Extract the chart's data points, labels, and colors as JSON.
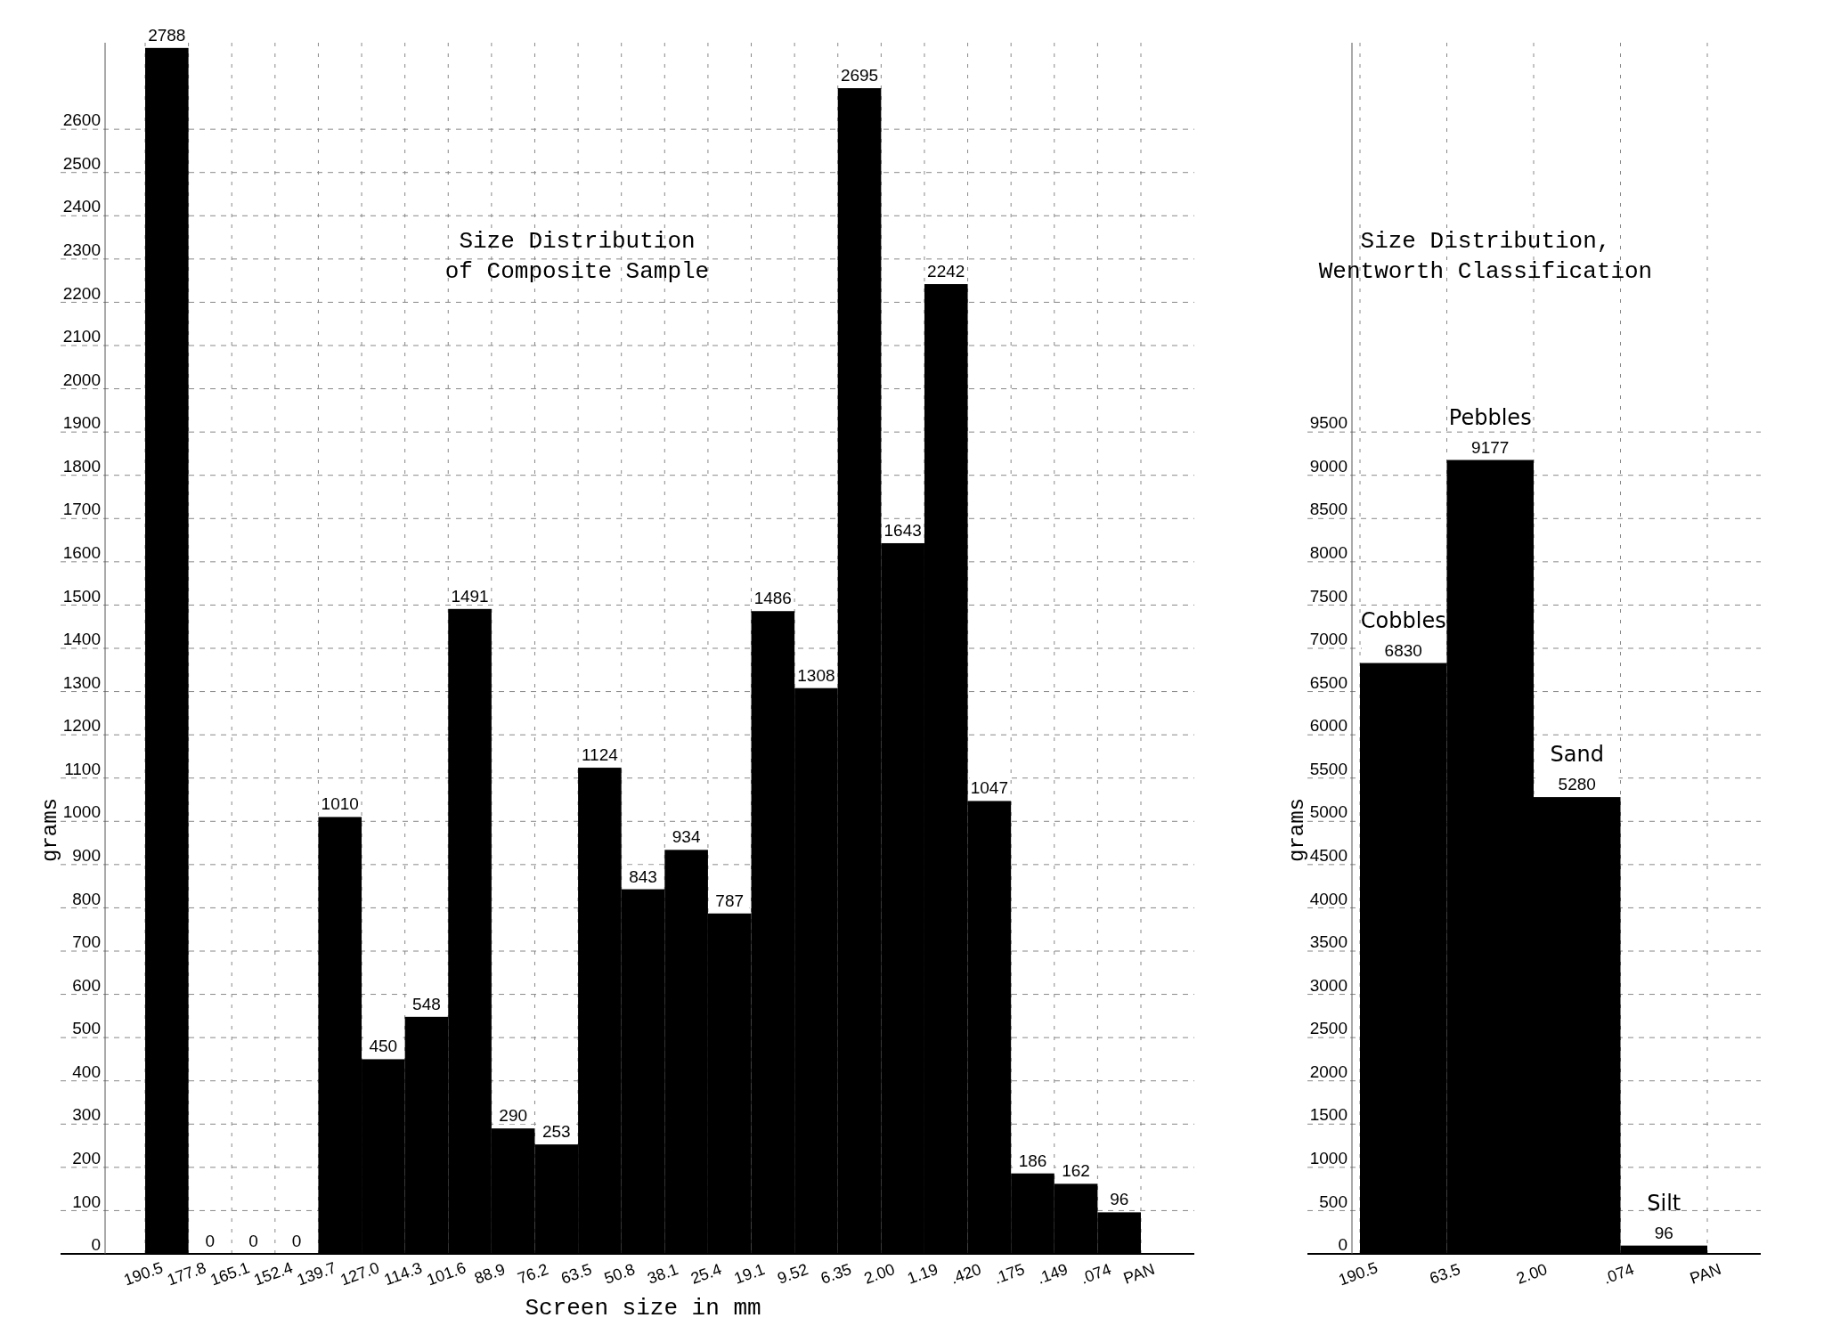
{
  "chart_data": [
    {
      "type": "bar",
      "title": "Size Distribution\nof Composite Sample",
      "xlabel": "Screen size in mm",
      "ylabel": "grams",
      "categories": [
        "190.5",
        "177.8",
        "165.1",
        "152.4",
        "139.7",
        "127.0",
        "114.3",
        "101.6",
        "88.9",
        "76.2",
        "63.5",
        "50.8",
        "38.1",
        "25.4",
        "19.1",
        "9.52",
        "6.35",
        "2.00",
        "1.19",
        ".420",
        ".175",
        ".149",
        ".074",
        "PAN"
      ],
      "values": [
        2788,
        0,
        0,
        0,
        1010,
        450,
        548,
        1491,
        290,
        253,
        1124,
        843,
        934,
        787,
        1486,
        1308,
        2695,
        1643,
        2242,
        1047,
        186,
        162,
        96,
        null
      ],
      "color": "#000000",
      "ylim": [
        0,
        2800
      ],
      "yticks": [
        0,
        100,
        200,
        300,
        400,
        500,
        600,
        700,
        800,
        900,
        1000,
        1100,
        1200,
        1300,
        1400,
        1500,
        1600,
        1700,
        1800,
        1900,
        2000,
        2100,
        2200,
        2300,
        2400,
        2500,
        2600
      ],
      "grid": true,
      "data_labels": true
    },
    {
      "type": "bar",
      "title": "Size Distribution,\nWentworth Classification",
      "ylabel": "grams",
      "categories": [
        "190.5",
        "63.5",
        "2.00",
        ".074",
        "PAN"
      ],
      "values": [
        6830,
        9177,
        5280,
        96,
        null
      ],
      "color": "#000000",
      "ylim": [
        0,
        14000
      ],
      "yticks": [
        0,
        500,
        1000,
        1500,
        2000,
        2500,
        3000,
        3500,
        4000,
        4500,
        5000,
        5500,
        6000,
        6500,
        7000,
        7500,
        8000,
        8500,
        9000,
        9500
      ],
      "grid": true,
      "data_labels": true,
      "annotations": [
        {
          "text": "Cobbles",
          "x": "190.5",
          "y": 6830
        },
        {
          "text": "Pebbles",
          "x": "63.5",
          "y": 9177
        },
        {
          "text": "Sand",
          "x": "2.00",
          "y": 5280
        },
        {
          "text": "Silt",
          "x": ".074",
          "y": 96
        }
      ]
    }
  ]
}
